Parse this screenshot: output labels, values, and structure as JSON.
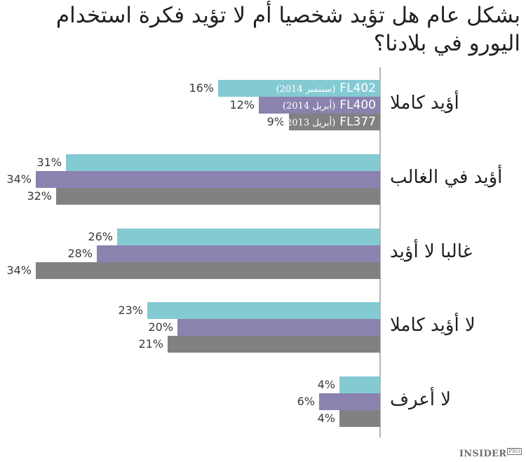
{
  "title": "بشكل عام هل  تؤيد شخصيا أم لا تؤيد فكرة استخدام اليورو في بلادنا؟",
  "legend": [
    {
      "code": "FL402",
      "period": "(سبتمبر 2014)",
      "color": "#84cad3"
    },
    {
      "code": "FL400",
      "period": "(أبريل 2014)",
      "color": "#8b82b0"
    },
    {
      "code": "FL377",
      "period": "(أبريل 2013)",
      "color": "#808282"
    }
  ],
  "categories": [
    {
      "label": "أؤيد كاملا",
      "values": [
        "16%",
        "12%",
        "9%"
      ]
    },
    {
      "label": "أؤيد في الغالب",
      "values": [
        "31%",
        "34%",
        "32%"
      ]
    },
    {
      "label": "غالبا لا أؤيد",
      "values": [
        "26%",
        "28%",
        "34%"
      ]
    },
    {
      "label": "لا أؤيد كاملا",
      "values": [
        "23%",
        "20%",
        "21%"
      ]
    },
    {
      "label": "لا أعرف",
      "values": [
        "4%",
        "6%",
        "4%"
      ]
    }
  ],
  "logo": {
    "main": "INSIDER",
    "sub": "PRO"
  },
  "chart_data": {
    "type": "bar",
    "orientation": "horizontal",
    "title": "بشكل عام هل تؤيد شخصيا أم لا تؤيد فكرة استخدام اليورو في بلادنا؟",
    "categories": [
      "أؤيد كاملا",
      "أؤيد في الغالب",
      "غالبا لا أؤيد",
      "لا أؤيد كاملا",
      "لا أعرف"
    ],
    "series": [
      {
        "name": "FL402 (سبتمبر 2014)",
        "color": "#84cad3",
        "values": [
          16,
          31,
          26,
          23,
          4
        ]
      },
      {
        "name": "FL400 (أبريل 2014)",
        "color": "#8b82b0",
        "values": [
          12,
          34,
          28,
          20,
          6
        ]
      },
      {
        "name": "FL377 (أبريل 2013)",
        "color": "#808282",
        "values": [
          9,
          32,
          34,
          21,
          4
        ]
      }
    ],
    "unit": "%",
    "xlabel": "",
    "ylabel": "",
    "grid": false,
    "legend_position": "inside first group bars"
  }
}
